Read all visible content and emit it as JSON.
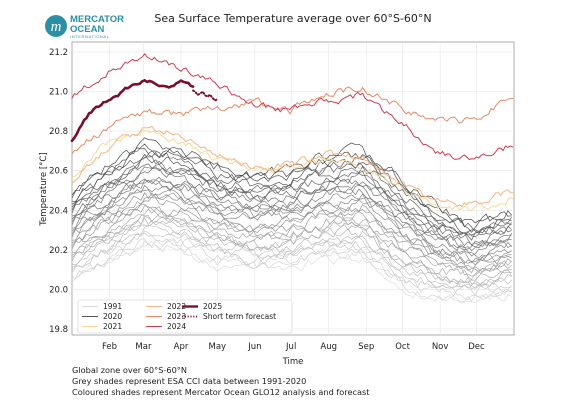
{
  "logo": {
    "line1": "MERCATOR",
    "line2": "OCEAN",
    "line3": "INTERNATIONAL",
    "color": "#2d8fa3"
  },
  "footnotes": [
    "Global zone over 60°S-60°N",
    "Grey shades represent ESA CCI data between 1991-2020",
    "Coloured shades represent Mercator Ocean GLO12 analysis and forecast"
  ],
  "chart_data": {
    "type": "line",
    "title": "Sea Surface Temperature average over 60°S-60°N",
    "xlabel": "Time",
    "ylabel": "Temperature [°C]",
    "xlim": [
      0,
      365
    ],
    "ylim": [
      19.77,
      21.25
    ],
    "yticks": [
      19.8,
      20.0,
      20.2,
      20.4,
      20.6,
      20.8,
      21.0,
      21.2
    ],
    "ytick_labels": [
      "19.8",
      "20.0",
      "20.2",
      "20.4",
      "20.6",
      "20.8",
      "21.0",
      "21.2"
    ],
    "xticks": [
      {
        "label": "Feb",
        "day": 31
      },
      {
        "label": "Mar",
        "day": 59
      },
      {
        "label": "Apr",
        "day": 90
      },
      {
        "label": "May",
        "day": 120
      },
      {
        "label": "Jun",
        "day": 151
      },
      {
        "label": "Jul",
        "day": 181
      },
      {
        "label": "Aug",
        "day": 212
      },
      {
        "label": "Sep",
        "day": 243
      },
      {
        "label": "Oct",
        "day": 273
      },
      {
        "label": "Nov",
        "day": 304
      },
      {
        "label": "Dec",
        "day": 334
      }
    ],
    "grid": true,
    "legend_position": "bottom-left",
    "legend": [
      {
        "label": "1991",
        "color": "#d9d9d9",
        "style": "solid"
      },
      {
        "label": "2020",
        "color": "#555555",
        "style": "solid"
      },
      {
        "label": "2021",
        "color": "#f6d99a",
        "style": "solid"
      },
      {
        "label": "2022",
        "color": "#f2b68a",
        "style": "solid"
      },
      {
        "label": "2023",
        "color": "#e68a68",
        "style": "solid"
      },
      {
        "label": "2024",
        "color": "#cc3d52",
        "style": "solid"
      },
      {
        "label": "2025",
        "color": "#7a0f2e",
        "style": "thick"
      },
      {
        "label": "Short term forecast",
        "color": "#7a0f2e",
        "style": "dotted"
      }
    ],
    "grey_years": {
      "first": 1991,
      "last": 2020,
      "color_light": "#dcdcdc",
      "color_dark": "#4a4a4a",
      "x": [
        0,
        30,
        60,
        90,
        120,
        150,
        180,
        210,
        240,
        270,
        300,
        330,
        365
      ],
      "first_year_profile": [
        20.06,
        20.13,
        20.21,
        20.2,
        20.13,
        20.1,
        20.11,
        20.15,
        20.15,
        20.02,
        19.96,
        19.95,
        19.97
      ],
      "last_year_profile": [
        20.5,
        20.62,
        20.73,
        20.7,
        20.62,
        20.58,
        20.6,
        20.67,
        20.7,
        20.56,
        20.42,
        20.33,
        20.4
      ]
    },
    "series": [
      {
        "name": "2021",
        "color": "#f6d99a",
        "width": 1,
        "x": [
          0,
          30,
          60,
          90,
          120,
          150,
          180,
          210,
          240,
          270,
          300,
          330,
          365
        ],
        "y": [
          20.58,
          20.74,
          20.81,
          20.75,
          20.66,
          20.6,
          20.61,
          20.66,
          20.63,
          20.52,
          20.42,
          20.4,
          20.46
        ]
      },
      {
        "name": "2022",
        "color": "#f2b68a",
        "width": 1,
        "x": [
          0,
          30,
          60,
          90,
          120,
          150,
          180,
          210,
          240,
          270,
          300,
          330,
          365
        ],
        "y": [
          20.55,
          20.72,
          20.82,
          20.78,
          20.68,
          20.62,
          20.63,
          20.68,
          20.67,
          20.54,
          20.45,
          20.43,
          20.5
        ]
      },
      {
        "name": "2023",
        "color": "#e68a68",
        "width": 1,
        "x": [
          0,
          30,
          60,
          90,
          120,
          150,
          180,
          210,
          240,
          270,
          300,
          330,
          365
        ],
        "y": [
          20.7,
          20.82,
          20.9,
          20.88,
          20.92,
          20.95,
          20.9,
          20.99,
          21.02,
          20.92,
          20.86,
          20.85,
          20.98
        ]
      },
      {
        "name": "2024",
        "color": "#cc3d52",
        "width": 1,
        "x": [
          0,
          30,
          60,
          90,
          120,
          150,
          180,
          210,
          240,
          270,
          300,
          330,
          365
        ],
        "y": [
          20.98,
          21.1,
          21.18,
          21.12,
          21.04,
          20.93,
          20.9,
          20.95,
          20.98,
          20.85,
          20.7,
          20.65,
          20.73
        ]
      },
      {
        "name": "2025",
        "color": "#7a0f2e",
        "width": 2.6,
        "x": [
          0,
          10,
          20,
          30,
          40,
          50,
          60,
          70,
          80,
          90,
          100
        ],
        "y": [
          20.76,
          20.86,
          20.92,
          20.96,
          20.99,
          21.03,
          21.07,
          21.04,
          21.02,
          21.05,
          21.02
        ]
      },
      {
        "name": "Short term forecast",
        "color": "#7a0f2e",
        "width": 2,
        "dashed": true,
        "x": [
          100,
          105,
          110,
          115,
          120
        ],
        "y": [
          21.02,
          21.0,
          20.98,
          20.97,
          20.96
        ]
      }
    ]
  }
}
